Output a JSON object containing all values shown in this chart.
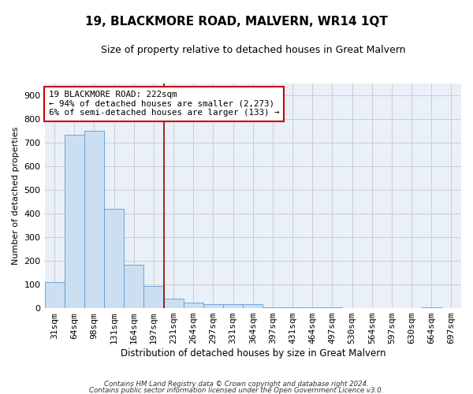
{
  "title": "19, BLACKMORE ROAD, MALVERN, WR14 1QT",
  "subtitle": "Size of property relative to detached houses in Great Malvern",
  "xlabel": "Distribution of detached houses by size in Great Malvern",
  "ylabel": "Number of detached properties",
  "categories": [
    "31sqm",
    "64sqm",
    "98sqm",
    "131sqm",
    "164sqm",
    "197sqm",
    "231sqm",
    "264sqm",
    "297sqm",
    "331sqm",
    "364sqm",
    "397sqm",
    "431sqm",
    "464sqm",
    "497sqm",
    "530sqm",
    "564sqm",
    "597sqm",
    "630sqm",
    "664sqm",
    "697sqm"
  ],
  "values": [
    110,
    735,
    750,
    420,
    185,
    95,
    40,
    25,
    18,
    18,
    18,
    3,
    3,
    3,
    3,
    0,
    0,
    0,
    0,
    3,
    0
  ],
  "bar_color": "#ccdff0",
  "bar_edge_color": "#5b9bd5",
  "background_color": "#eaf0f8",
  "grid_color": "#c8c8c8",
  "red_line_index": 5.5,
  "annotation_text": "19 BLACKMORE ROAD: 222sqm\n← 94% of detached houses are smaller (2,273)\n6% of semi-detached houses are larger (133) →",
  "annotation_box_color": "#ffffff",
  "annotation_box_edge": "#cc0000",
  "ylim": [
    0,
    950
  ],
  "yticks": [
    0,
    100,
    200,
    300,
    400,
    500,
    600,
    700,
    800,
    900
  ],
  "footer_line1": "Contains HM Land Registry data © Crown copyright and database right 2024.",
  "footer_line2": "Contains public sector information licensed under the Open Government Licence v3.0."
}
